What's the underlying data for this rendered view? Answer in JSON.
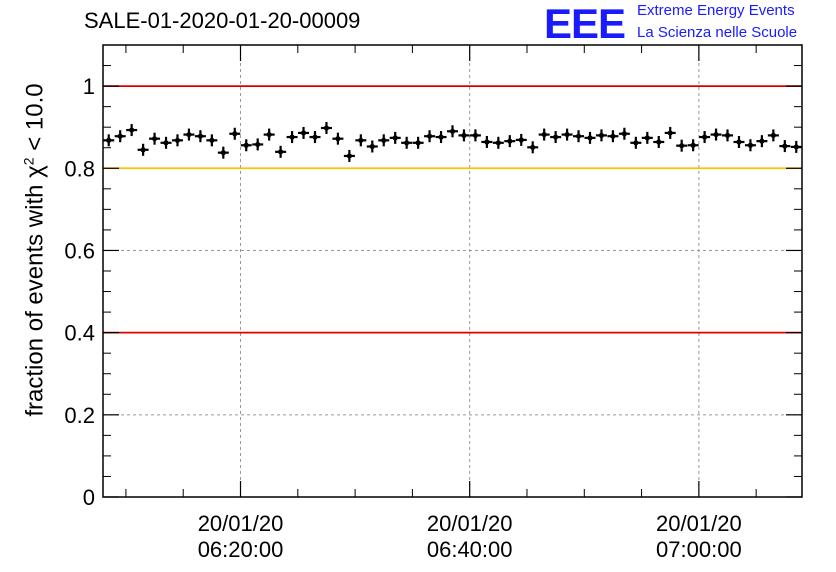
{
  "header": {
    "title": "SALE-01-2020-01-20-00009",
    "logo": "EEE",
    "logo_line1": "Extreme Energy Events",
    "logo_line2": "La Scienza nelle Scuole"
  },
  "colors": {
    "reference_red": "#dd0000",
    "reference_yellow": "#ffc000",
    "logo_blue": "#1a1aff",
    "grid": "#999999"
  },
  "chart_data": {
    "type": "scatter",
    "title": "SALE-01-2020-01-20-00009",
    "xlabel": "",
    "ylabel_prefix": "fraction of events with ",
    "ylabel_symbol": "χ",
    "ylabel_sup": "2",
    "ylabel_suffix": " < 10.0",
    "ylim": [
      0,
      1.1
    ],
    "xlim": [
      "20/01/20 06:08:00",
      "20/01/20 07:09:00"
    ],
    "x_ticks": [
      {
        "date": "20/01/20",
        "time": "06:20:00"
      },
      {
        "date": "20/01/20",
        "time": "06:40:00"
      },
      {
        "date": "20/01/20",
        "time": "07:00:00"
      }
    ],
    "y_ticks": [
      "0",
      "0.2",
      "0.4",
      "0.6",
      "0.8",
      "1"
    ],
    "y_tick_values": [
      0,
      0.2,
      0.4,
      0.6,
      0.8,
      1.0
    ],
    "reference_lines": [
      {
        "y": 1.0,
        "color": "#dd0000"
      },
      {
        "y": 0.8,
        "color": "#ffc000"
      },
      {
        "y": 0.4,
        "color": "#dd0000"
      }
    ],
    "grid": true,
    "marker": "cross with error bars",
    "series": [
      {
        "x": [
          "06:08:30",
          "06:09:30",
          "06:10:30",
          "06:11:30",
          "06:12:30",
          "06:13:30",
          "06:14:30",
          "06:15:30",
          "06:16:30",
          "06:17:30",
          "06:18:30",
          "06:19:30",
          "06:20:30",
          "06:21:30",
          "06:22:30",
          "06:23:30",
          "06:24:30",
          "06:25:30",
          "06:26:30",
          "06:27:30",
          "06:28:30",
          "06:29:30",
          "06:30:30",
          "06:31:30",
          "06:32:30",
          "06:33:30",
          "06:34:30",
          "06:35:30",
          "06:36:30",
          "06:37:30",
          "06:38:30",
          "06:39:30",
          "06:40:30",
          "06:41:30",
          "06:42:30",
          "06:43:30",
          "06:44:30",
          "06:45:30",
          "06:46:30",
          "06:47:30",
          "06:48:30",
          "06:49:30",
          "06:50:30",
          "06:51:30",
          "06:52:30",
          "06:53:30",
          "06:54:30",
          "06:55:30",
          "06:56:30",
          "06:57:30",
          "06:58:30",
          "06:59:30",
          "07:00:30",
          "07:01:30",
          "07:02:30",
          "07:03:30",
          "07:04:30",
          "07:05:30",
          "07:06:30",
          "07:07:30",
          "07:08:30"
        ],
        "y": [
          0.868,
          0.878,
          0.893,
          0.845,
          0.872,
          0.862,
          0.868,
          0.882,
          0.878,
          0.868,
          0.838,
          0.884,
          0.856,
          0.858,
          0.882,
          0.84,
          0.876,
          0.886,
          0.876,
          0.898,
          0.872,
          0.83,
          0.868,
          0.853,
          0.868,
          0.874,
          0.862,
          0.862,
          0.878,
          0.876,
          0.89,
          0.88,
          0.88,
          0.864,
          0.862,
          0.866,
          0.869,
          0.851,
          0.882,
          0.876,
          0.882,
          0.878,
          0.874,
          0.88,
          0.878,
          0.884,
          0.862,
          0.874,
          0.864,
          0.886,
          0.855,
          0.856,
          0.876,
          0.882,
          0.88,
          0.864,
          0.856,
          0.866,
          0.88,
          0.854,
          0.852
        ]
      }
    ]
  }
}
